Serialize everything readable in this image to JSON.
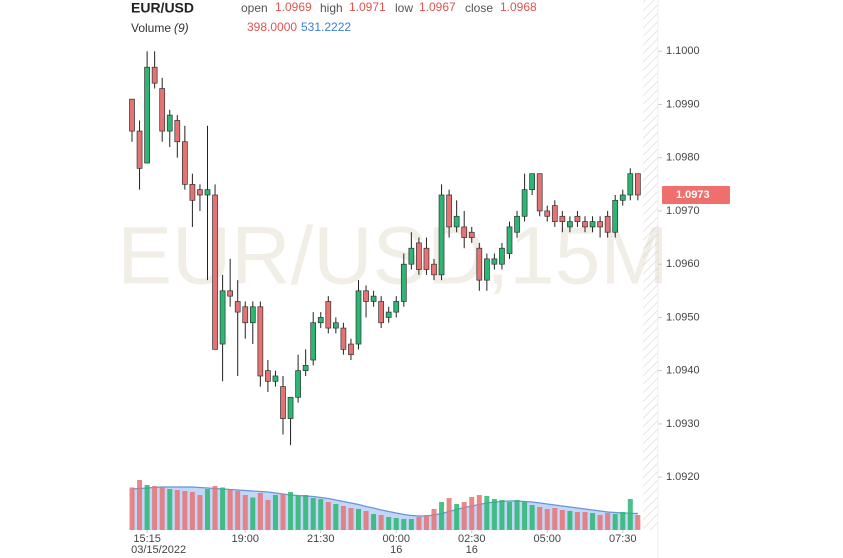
{
  "chart_data": {
    "type": "candlestick",
    "symbol": "EUR/USD",
    "watermark": "EUR/USD,15M",
    "legend_fields": [
      {
        "label": "open",
        "value": 1.0969
      },
      {
        "label": "high",
        "value": 1.0971
      },
      {
        "label": "low",
        "value": 1.0967
      },
      {
        "label": "close",
        "value": 1.0968
      }
    ],
    "volume_label": "Volume",
    "volume_period": "(9)",
    "volume_value": {
      "value": 398,
      "label": "398.0000"
    },
    "volume_ma_value": {
      "value": 531.2222,
      "label": "531.2222"
    },
    "last_price": 1.0973,
    "up_color": "#2bb673",
    "down_color": "#e57373",
    "volume_ma_color": "#6a93d8",
    "volume_ma_fill": "#b3cdf5",
    "ylim": [
      1.0905,
      1.101
    ],
    "yticks": [
      {
        "value": 1.092,
        "label": "1.0920"
      },
      {
        "value": 1.093,
        "label": "1.0930"
      },
      {
        "value": 1.094,
        "label": "1.0940"
      },
      {
        "value": 1.095,
        "label": "1.0950"
      },
      {
        "value": 1.096,
        "label": "1.0960"
      },
      {
        "value": 1.097,
        "label": "1.0970"
      },
      {
        "value": 1.098,
        "label": "1.0980"
      },
      {
        "value": 1.099,
        "label": "1.0990"
      },
      {
        "value": 1.1,
        "label": "1.1000"
      }
    ],
    "xticks": [
      {
        "value": 2,
        "label": "15:15"
      },
      {
        "value": 15,
        "label": "19:00"
      },
      {
        "value": 25,
        "label": "21:30"
      },
      {
        "value": 35,
        "label": "00:00"
      },
      {
        "value": 45,
        "label": "02:30"
      },
      {
        "value": 55,
        "label": "05:00"
      },
      {
        "value": 65,
        "label": "07:30"
      }
    ],
    "xtick_sublabels": [
      {
        "value": 2,
        "label": "03/15/2022"
      },
      {
        "value": 35,
        "label": "16"
      },
      {
        "value": 45,
        "label": "16"
      }
    ],
    "volume_lim": [
      0,
      1000
    ],
    "open": [
      1.0991,
      1.0985,
      1.0979,
      1.0997,
      1.0993,
      1.0985,
      1.0987,
      1.0983,
      1.0975,
      1.0974,
      1.0973,
      1.0973,
      1.0945,
      1.0955,
      1.0953,
      1.0952,
      1.0949,
      1.0952,
      1.094,
      1.0938,
      1.0937,
      1.0931,
      1.0935,
      1.094,
      1.0942,
      1.0949,
      1.0953,
      1.0948,
      1.0948,
      1.0945,
      1.0945,
      1.0955,
      1.0953,
      1.0953,
      1.095,
      1.0951,
      1.0953,
      1.096,
      1.0964,
      1.0963,
      1.096,
      1.0958,
      1.0973,
      1.0967,
      1.0967,
      1.0966,
      1.0963,
      1.0957,
      1.096,
      1.096,
      1.0962,
      1.0966,
      1.0969,
      1.0974,
      1.0977,
      1.097,
      1.0971,
      1.0969,
      1.0967,
      1.0969,
      1.0968,
      1.0967,
      1.0968,
      1.0969,
      1.0966,
      1.0972,
      1.0973,
      1.0977
    ],
    "high": [
      1.0991,
      1.0987,
      1.1,
      1.1,
      1.0995,
      1.0989,
      1.0988,
      1.0986,
      1.0977,
      1.0975,
      1.0986,
      1.0975,
      1.0958,
      1.0961,
      1.0957,
      1.0953,
      1.0953,
      1.0953,
      1.0942,
      1.094,
      1.0939,
      1.0935,
      1.0943,
      1.0944,
      1.0951,
      1.0951,
      1.0954,
      1.095,
      1.0949,
      1.0946,
      1.0957,
      1.0956,
      1.0955,
      1.0954,
      1.0952,
      1.0954,
      1.0962,
      1.0966,
      1.0965,
      1.0965,
      1.0961,
      1.0975,
      1.0974,
      1.0972,
      1.097,
      1.0967,
      1.0964,
      1.0962,
      1.0962,
      1.0964,
      1.0968,
      1.097,
      1.0977,
      1.0977,
      1.0977,
      1.0971,
      1.0972,
      1.097,
      1.0969,
      1.097,
      1.0969,
      1.0969,
      1.0969,
      1.097,
      1.0973,
      1.0974,
      1.0978,
      1.0977
    ],
    "low": [
      1.0983,
      1.0974,
      1.0979,
      1.0993,
      1.0983,
      1.0982,
      1.098,
      1.0974,
      1.0967,
      1.097,
      1.0957,
      1.0944,
      1.0938,
      1.0952,
      1.0939,
      1.0946,
      1.0945,
      1.0937,
      1.0936,
      1.0937,
      1.0928,
      1.0926,
      1.0934,
      1.0939,
      1.0941,
      1.0948,
      1.0947,
      1.0947,
      1.0943,
      1.0942,
      1.0944,
      1.095,
      1.0952,
      1.0948,
      1.0949,
      1.095,
      1.0952,
      1.0959,
      1.0958,
      1.0958,
      1.0957,
      1.0957,
      1.0965,
      1.0966,
      1.0963,
      1.0964,
      1.0955,
      1.0955,
      1.0959,
      1.0959,
      1.0961,
      1.0965,
      1.0968,
      1.0973,
      1.0969,
      1.0968,
      1.0967,
      1.0966,
      1.0966,
      1.0967,
      1.0966,
      1.0966,
      1.0965,
      1.0965,
      1.0965,
      1.0971,
      1.0972,
      1.0972
    ],
    "close": [
      1.0985,
      1.0978,
      1.0997,
      1.0994,
      1.0985,
      1.0988,
      1.0983,
      1.0975,
      1.0972,
      1.0973,
      1.0974,
      1.0944,
      1.0955,
      1.0954,
      1.0951,
      1.0949,
      1.0952,
      1.0939,
      1.0938,
      1.0939,
      1.0931,
      1.0935,
      1.094,
      1.0941,
      1.0949,
      1.095,
      1.0948,
      1.0949,
      1.0944,
      1.0943,
      1.0955,
      1.0953,
      1.0954,
      1.0949,
      1.0951,
      1.0953,
      1.096,
      1.0963,
      1.0959,
      1.0959,
      1.0958,
      1.0973,
      1.0967,
      1.0969,
      1.0965,
      1.0965,
      1.0957,
      1.0961,
      1.0961,
      1.0963,
      1.0967,
      1.0969,
      1.0974,
      1.0977,
      1.097,
      1.0969,
      1.0968,
      1.0968,
      1.0968,
      1.0968,
      1.0967,
      1.0968,
      1.0967,
      1.0966,
      1.0972,
      1.0973,
      1.0977,
      1.0973
    ],
    "volume": [
      850,
      1000,
      900,
      880,
      860,
      820,
      800,
      780,
      760,
      700,
      820,
      880,
      850,
      800,
      780,
      700,
      650,
      740,
      600,
      700,
      720,
      760,
      680,
      700,
      640,
      620,
      560,
      520,
      480,
      440,
      420,
      380,
      320,
      300,
      260,
      240,
      220,
      220,
      260,
      300,
      420,
      560,
      640,
      520,
      560,
      660,
      700,
      680,
      620,
      600,
      560,
      600,
      560,
      500,
      460,
      420,
      440,
      400,
      380,
      360,
      360,
      340,
      300,
      340,
      320,
      360,
      620,
      300
    ],
    "volume_ma": [
      820,
      830,
      840,
      850,
      860,
      860,
      860,
      860,
      860,
      850,
      840,
      830,
      820,
      810,
      800,
      790,
      780,
      770,
      760,
      740,
      720,
      700,
      690,
      680,
      670,
      650,
      630,
      600,
      570,
      540,
      510,
      470,
      440,
      400,
      370,
      340,
      310,
      290,
      280,
      280,
      300,
      330,
      370,
      410,
      450,
      480,
      510,
      540,
      560,
      570,
      580,
      580,
      570,
      560,
      540,
      520,
      500,
      480,
      460,
      440,
      420,
      400,
      380,
      360,
      350,
      340,
      335,
      330
    ]
  }
}
